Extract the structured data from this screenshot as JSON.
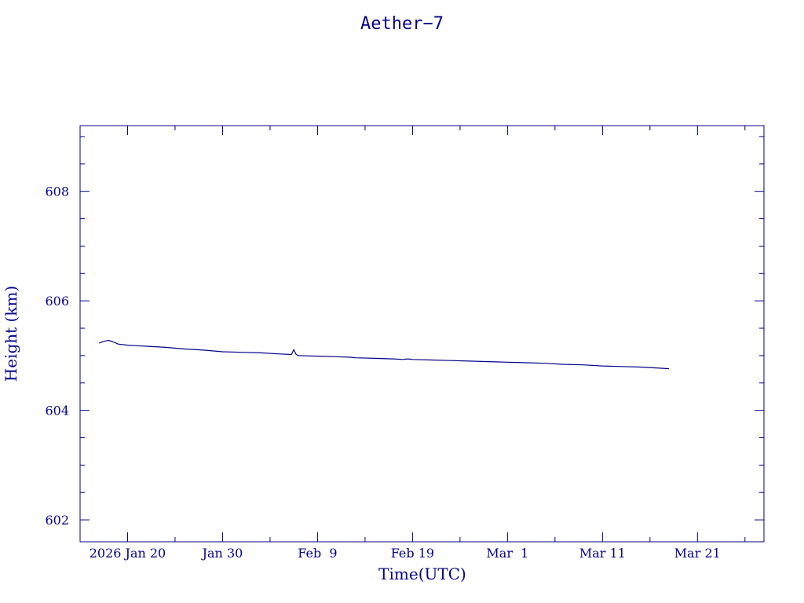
{
  "chart_data": {
    "type": "line",
    "title": "Aether−7",
    "xlabel": "Time(UTC)",
    "ylabel": "Height (km)",
    "x_axis": "date",
    "xlim": [
      "2026-01-15",
      "2026-03-28"
    ],
    "ylim": [
      601.6,
      609.2
    ],
    "x_ticks": [
      {
        "date": "2026-01-20",
        "label": "2026 Jan 20"
      },
      {
        "date": "2026-01-30",
        "label": "Jan 30"
      },
      {
        "date": "2026-02-09",
        "label": "Feb  9"
      },
      {
        "date": "2026-02-19",
        "label": "Feb 19"
      },
      {
        "date": "2026-03-01",
        "label": "Mar  1"
      },
      {
        "date": "2026-03-11",
        "label": "Mar 11"
      },
      {
        "date": "2026-03-21",
        "label": "Mar 21"
      }
    ],
    "y_ticks": [
      602,
      604,
      606,
      608
    ],
    "color": "#00008b",
    "series": [
      {
        "x": [
          "2026-01-17T00:00",
          "2026-01-17T12:00",
          "2026-01-18T00:00",
          "2026-01-18T12:00",
          "2026-01-19T00:00",
          "2026-01-20T00:00",
          "2026-01-21T00:00",
          "2026-01-22T00:00",
          "2026-01-24T00:00",
          "2026-01-26T00:00",
          "2026-01-28T00:00",
          "2026-01-30T00:00",
          "2026-02-01T00:00",
          "2026-02-03T00:00",
          "2026-02-05T00:00",
          "2026-02-06T06:00",
          "2026-02-06T12:00",
          "2026-02-06T18:00",
          "2026-02-07T00:00",
          "2026-02-09T00:00",
          "2026-02-11T00:00",
          "2026-02-12T12:00",
          "2026-02-13T00:00",
          "2026-02-15T00:00",
          "2026-02-17T00:00",
          "2026-02-18T00:00",
          "2026-02-18T12:00",
          "2026-02-19T00:00",
          "2026-02-21T00:00",
          "2026-02-23T00:00",
          "2026-02-25T00:00",
          "2026-02-27T00:00",
          "2026-03-01T00:00",
          "2026-03-03T00:00",
          "2026-03-05T00:00",
          "2026-03-07T00:00",
          "2026-03-09T00:00",
          "2026-03-11T00:00",
          "2026-03-13T00:00",
          "2026-03-15T00:00",
          "2026-03-17T00:00",
          "2026-03-18T00:00"
        ],
        "y": [
          605.23,
          605.26,
          605.28,
          605.25,
          605.21,
          605.19,
          605.18,
          605.17,
          605.15,
          605.12,
          605.1,
          605.07,
          605.06,
          605.05,
          605.03,
          605.02,
          605.11,
          605.02,
          605.0,
          604.99,
          604.98,
          604.97,
          604.96,
          604.95,
          604.94,
          604.93,
          604.94,
          604.93,
          604.92,
          604.91,
          604.9,
          604.89,
          604.88,
          604.87,
          604.86,
          604.84,
          604.83,
          604.81,
          604.8,
          604.79,
          604.77,
          604.76
        ]
      }
    ]
  }
}
